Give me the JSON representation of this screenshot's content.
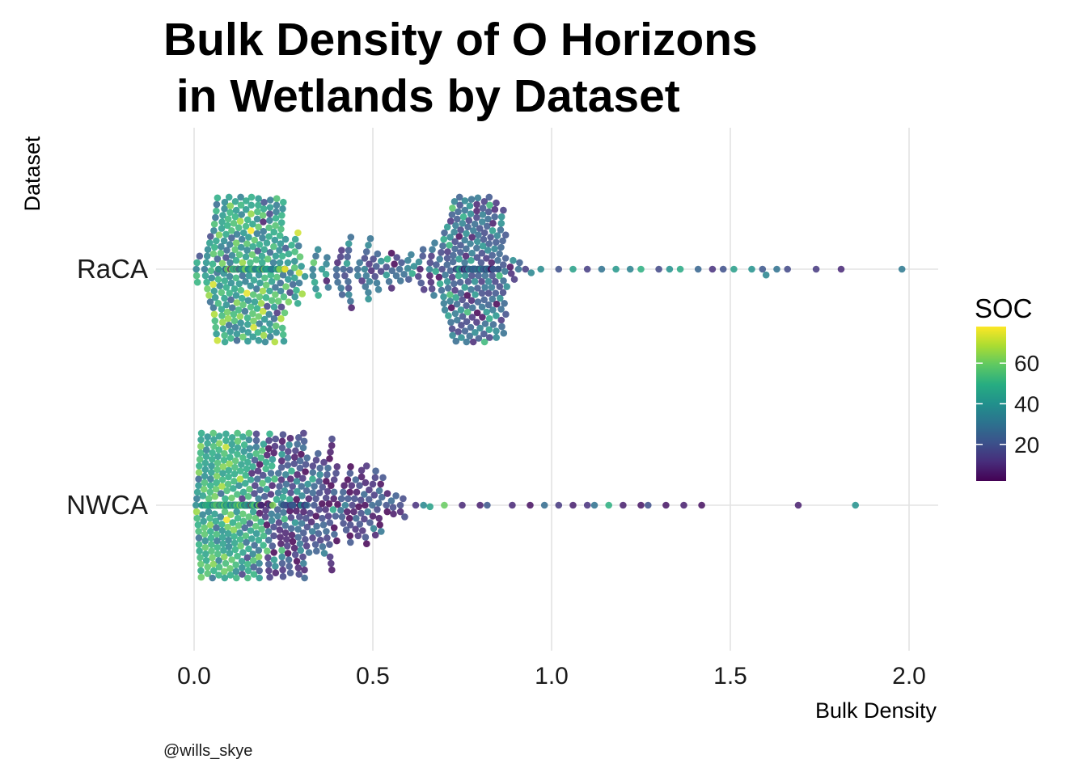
{
  "chart_data": {
    "type": "scatter",
    "subtype": "beeswarm",
    "title_lines": [
      "Bulk Density of O Horizons",
      " in Wetlands by Dataset"
    ],
    "xlabel": "Bulk Density",
    "ylabel": "Dataset",
    "categories": [
      "RaCA",
      "NWCA"
    ],
    "xlim": [
      -0.08,
      2.08
    ],
    "x_ticks": [
      0.0,
      0.5,
      1.0,
      1.5,
      2.0
    ],
    "x_tick_labels": [
      "0.0",
      "0.5",
      "1.0",
      "1.5",
      "2.0"
    ],
    "grid": true,
    "legend": {
      "title": "SOC",
      "position": "right",
      "range": [
        2,
        78
      ],
      "ticks": [
        20,
        40,
        60
      ],
      "tick_labels": [
        "20",
        "40",
        "60"
      ],
      "palette": [
        "#440154",
        "#472D7B",
        "#3B528B",
        "#2C728E",
        "#21908C",
        "#27AD81",
        "#5DC863",
        "#AADC32",
        "#FDE725"
      ]
    },
    "series": [
      {
        "category": "RaCA",
        "approx_count": 900,
        "density_modes": [
          {
            "x": 0.16,
            "sd": 0.07,
            "weight": 0.45,
            "soc_mean": 45,
            "soc_sd": 13
          },
          {
            "x": 0.78,
            "sd": 0.05,
            "weight": 0.35,
            "soc_mean": 25,
            "soc_sd": 12
          },
          {
            "x": 0.52,
            "sd": 0.12,
            "weight": 0.12,
            "soc_mean": 22,
            "soc_sd": 12
          }
        ],
        "tail_points": [
          {
            "x": 0.97,
            "soc": 38
          },
          {
            "x": 1.02,
            "soc": 20
          },
          {
            "x": 1.06,
            "soc": 45
          },
          {
            "x": 1.1,
            "soc": 15
          },
          {
            "x": 1.14,
            "soc": 30
          },
          {
            "x": 1.18,
            "soc": 42
          },
          {
            "x": 1.22,
            "soc": 35
          },
          {
            "x": 1.25,
            "soc": 50
          },
          {
            "x": 1.3,
            "soc": 18
          },
          {
            "x": 1.33,
            "soc": 40
          },
          {
            "x": 1.36,
            "soc": 48
          },
          {
            "x": 1.41,
            "soc": 26
          },
          {
            "x": 1.45,
            "soc": 12
          },
          {
            "x": 1.48,
            "soc": 20
          },
          {
            "x": 1.51,
            "soc": 44
          },
          {
            "x": 1.56,
            "soc": 40
          },
          {
            "x": 1.59,
            "soc": 22
          },
          {
            "x": 1.6,
            "soc": 36
          },
          {
            "x": 1.63,
            "soc": 30
          },
          {
            "x": 1.66,
            "soc": 18
          },
          {
            "x": 1.74,
            "soc": 14
          },
          {
            "x": 1.81,
            "soc": 10
          },
          {
            "x": 1.98,
            "soc": 32
          }
        ]
      },
      {
        "category": "NWCA",
        "approx_count": 800,
        "density_modes": [
          {
            "x": 0.1,
            "sd": 0.05,
            "weight": 0.55,
            "soc_mean": 48,
            "soc_sd": 10
          },
          {
            "x": 0.26,
            "sd": 0.07,
            "weight": 0.3,
            "soc_mean": 18,
            "soc_sd": 12
          },
          {
            "x": 0.45,
            "sd": 0.07,
            "weight": 0.1,
            "soc_mean": 14,
            "soc_sd": 10
          }
        ],
        "tail_points": [
          {
            "x": 0.62,
            "soc": 12
          },
          {
            "x": 0.66,
            "soc": 45
          },
          {
            "x": 0.7,
            "soc": 60
          },
          {
            "x": 0.75,
            "soc": 10
          },
          {
            "x": 0.8,
            "soc": 8
          },
          {
            "x": 0.82,
            "soc": 22
          },
          {
            "x": 0.89,
            "soc": 10
          },
          {
            "x": 0.94,
            "soc": 5
          },
          {
            "x": 0.98,
            "soc": 28
          },
          {
            "x": 1.02,
            "soc": 14
          },
          {
            "x": 1.06,
            "soc": 8
          },
          {
            "x": 1.1,
            "soc": 12
          },
          {
            "x": 1.12,
            "soc": 30
          },
          {
            "x": 1.16,
            "soc": 50
          },
          {
            "x": 1.2,
            "soc": 8
          },
          {
            "x": 1.25,
            "soc": 6
          },
          {
            "x": 1.27,
            "soc": 20
          },
          {
            "x": 1.32,
            "soc": 6
          },
          {
            "x": 1.37,
            "soc": 8
          },
          {
            "x": 1.42,
            "soc": 5
          },
          {
            "x": 1.69,
            "soc": 8
          },
          {
            "x": 1.85,
            "soc": 40
          }
        ]
      }
    ]
  },
  "footer": {
    "credit": "@wills_skye"
  }
}
